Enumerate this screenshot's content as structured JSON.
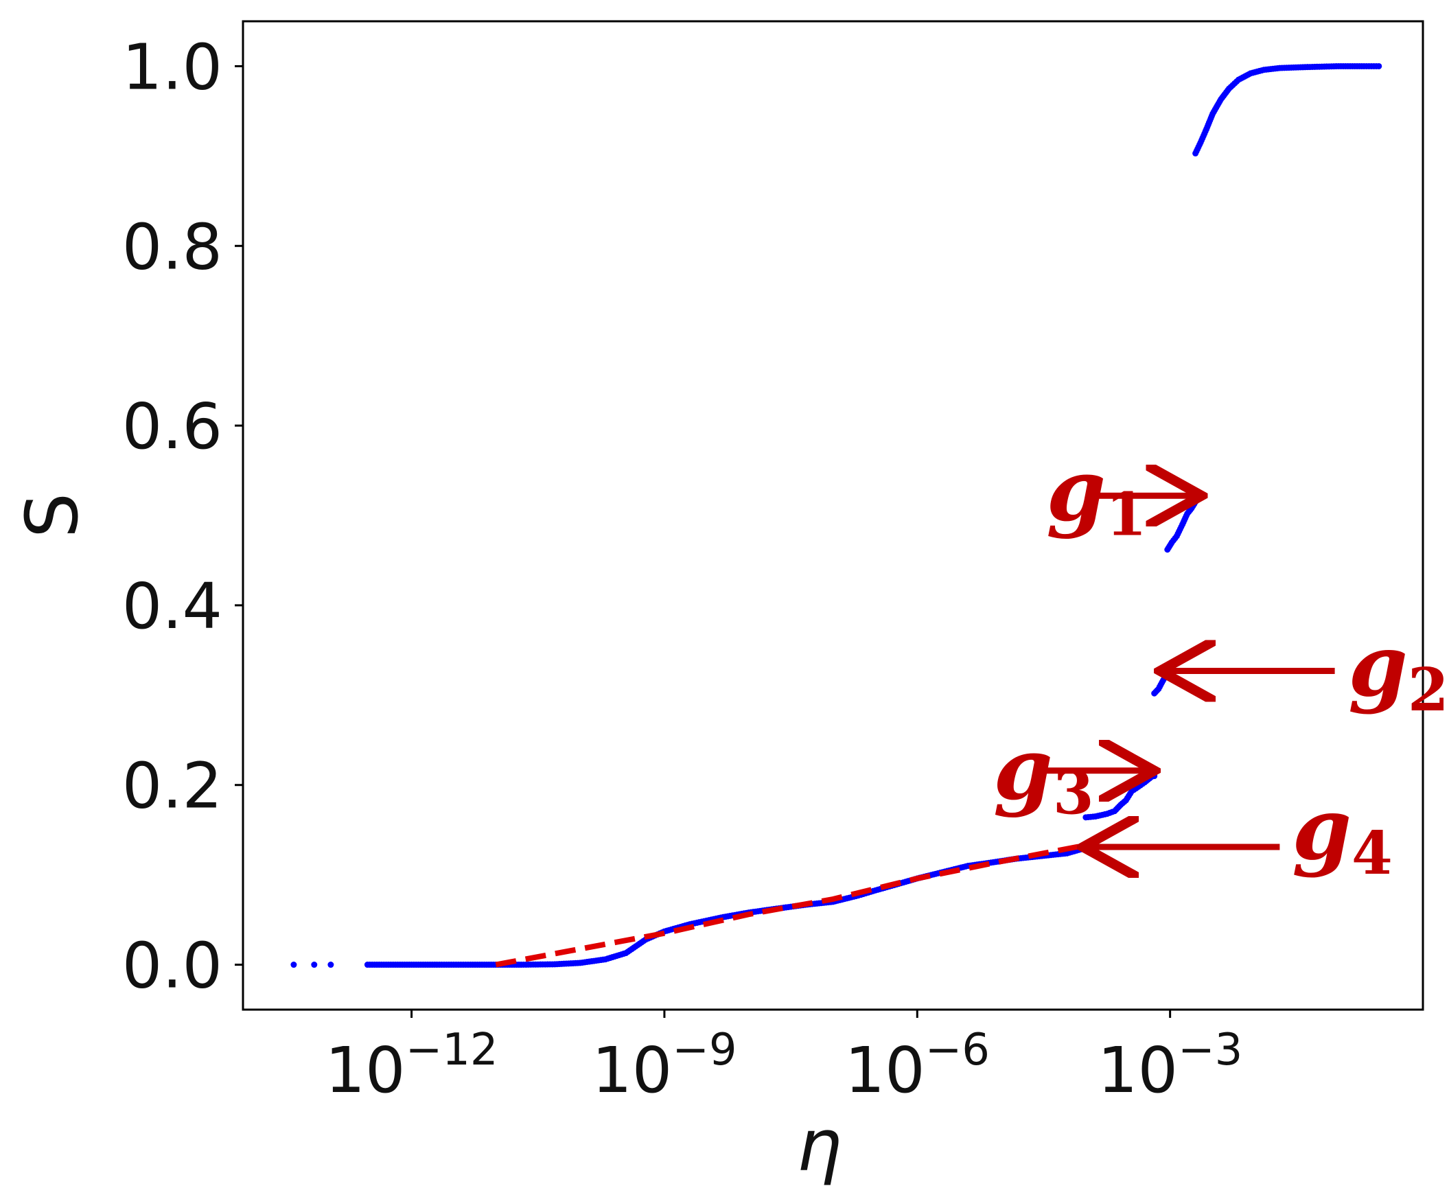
{
  "chart_data": {
    "type": "scatter",
    "xlabel": "η",
    "ylabel": "S",
    "x_scale": "log",
    "xlim": [
      1e-14,
      1
    ],
    "ylim": [
      -0.05,
      1.05
    ],
    "xticks": [
      {
        "value": 1e-12,
        "base": "10",
        "exp": "−12"
      },
      {
        "value": 1e-09,
        "base": "10",
        "exp": "−9"
      },
      {
        "value": 1e-06,
        "base": "10",
        "exp": "−6"
      },
      {
        "value": 0.001,
        "base": "10",
        "exp": "−3"
      }
    ],
    "yticks": [
      {
        "value": 0.0,
        "label": "0.0"
      },
      {
        "value": 0.2,
        "label": "0.2"
      },
      {
        "value": 0.4,
        "label": "0.4"
      },
      {
        "value": 0.6,
        "label": "0.6"
      },
      {
        "value": 0.8,
        "label": "0.8"
      },
      {
        "value": 1.0,
        "label": "1.0"
      }
    ],
    "grid": false,
    "series": [
      {
        "color": "#0000ff",
        "marker": "dot",
        "segments": [
          {
            "points": [
              [
                4e-14,
                0.0
              ],
              [
                7e-14,
                0.0
              ],
              [
                1.1e-13,
                0.0
              ]
            ]
          },
          {
            "points": [
              [
                3e-13,
                0.0
              ],
              [
                5e-13,
                0.0
              ],
              [
                1e-12,
                0.0
              ],
              [
                2e-12,
                0.0
              ],
              [
                5e-12,
                0.0
              ],
              [
                1e-11,
                0.0
              ],
              [
                2e-11,
                0.0
              ],
              [
                5e-11,
                0.0005
              ],
              [
                1e-10,
                0.002
              ],
              [
                2e-10,
                0.006
              ],
              [
                3.5e-10,
                0.013
              ],
              [
                6e-10,
                0.028
              ],
              [
                1e-09,
                0.037
              ],
              [
                2e-09,
                0.045
              ],
              [
                5e-09,
                0.053
              ],
              [
                1e-08,
                0.058
              ],
              [
                2e-08,
                0.062
              ],
              [
                5e-08,
                0.067
              ],
              [
                1e-07,
                0.07
              ],
              [
                2e-07,
                0.077
              ],
              [
                3e-07,
                0.082
              ],
              [
                6e-07,
                0.09
              ],
              [
                1e-06,
                0.096
              ],
              [
                2e-06,
                0.103
              ],
              [
                4e-06,
                0.11
              ],
              [
                8e-06,
                0.114
              ],
              [
                1.5e-05,
                0.118
              ],
              [
                3e-05,
                0.121
              ],
              [
                6e-05,
                0.124
              ],
              [
                0.0001,
                0.13
              ]
            ]
          },
          {
            "points": [
              [
                0.0001,
                0.164
              ],
              [
                0.00013,
                0.165
              ],
              [
                0.00018,
                0.168
              ],
              [
                0.00022,
                0.171
              ],
              [
                0.00026,
                0.178
              ],
              [
                0.0003,
                0.183
              ],
              [
                0.00035,
                0.193
              ],
              [
                0.00042,
                0.198
              ],
              [
                0.0005,
                0.203
              ],
              [
                0.0006,
                0.209
              ],
              [
                0.00065,
                0.21
              ]
            ]
          },
          {
            "points": [
              [
                0.00065,
                0.302
              ],
              [
                0.00073,
                0.307
              ],
              [
                0.0008,
                0.314
              ],
              [
                0.00088,
                0.321
              ]
            ]
          },
          {
            "points": [
              [
                0.00093,
                0.462
              ],
              [
                0.00105,
                0.47
              ],
              [
                0.0012,
                0.477
              ],
              [
                0.0014,
                0.49
              ],
              [
                0.0016,
                0.502
              ],
              [
                0.0018,
                0.508
              ],
              [
                0.002,
                0.515
              ]
            ]
          },
          {
            "points": [
              [
                0.002,
                0.903
              ],
              [
                0.0023,
                0.915
              ],
              [
                0.0027,
                0.93
              ],
              [
                0.0032,
                0.947
              ],
              [
                0.004,
                0.963
              ],
              [
                0.005,
                0.975
              ],
              [
                0.0065,
                0.985
              ],
              [
                0.009,
                0.992
              ],
              [
                0.013,
                0.996
              ],
              [
                0.02,
                0.998
              ],
              [
                0.04,
                0.999
              ],
              [
                0.1,
                1.0
              ],
              [
                0.2,
                1.0
              ],
              [
                0.3,
                1.0
              ]
            ]
          }
        ]
      },
      {
        "color": "#e00000",
        "style": "dashed",
        "points": [
          [
            1e-11,
            0.0
          ],
          [
            1e-09,
            0.035
          ],
          [
            1e-08,
            0.056
          ],
          [
            1e-07,
            0.073
          ],
          [
            1e-06,
            0.096
          ],
          [
            1e-05,
            0.115
          ],
          [
            0.0001,
            0.133
          ]
        ]
      }
    ],
    "annotations": [
      {
        "text": "g",
        "sub": "1",
        "label_x": 3.4e-05,
        "label_y": 0.495,
        "arrow_from": [
          0.00012,
          0.522
        ],
        "arrow_to": [
          0.002,
          0.522
        ]
      },
      {
        "text": "g",
        "sub": "2",
        "label_x": 0.13,
        "label_y": 0.3,
        "arrow_from": [
          0.09,
          0.327
        ],
        "arrow_to": [
          0.0009,
          0.327
        ]
      },
      {
        "text": "g",
        "sub": "3",
        "label_x": 8e-06,
        "label_y": 0.185,
        "arrow_from": [
          3e-05,
          0.216
        ],
        "arrow_to": [
          0.00055,
          0.216
        ]
      },
      {
        "text": "g",
        "sub": "4",
        "label_x": 0.028,
        "label_y": 0.118,
        "arrow_from": [
          0.02,
          0.131
        ],
        "arrow_to": [
          0.00011,
          0.131
        ]
      }
    ]
  }
}
